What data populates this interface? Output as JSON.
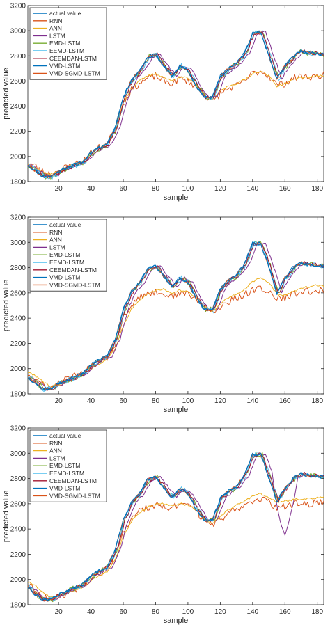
{
  "chart_data": [
    {
      "type": "line",
      "xlabel": "sample",
      "ylabel": "predicted value",
      "xlim": [
        1,
        184
      ],
      "ylim": [
        1800,
        3200
      ],
      "x_ticks": [
        20,
        40,
        60,
        80,
        100,
        120,
        140,
        160,
        180
      ],
      "y_ticks": [
        1800,
        2000,
        2200,
        2400,
        2600,
        2800,
        3000,
        3200
      ],
      "grid": false,
      "legend_position": "top-left",
      "legend": [
        "actual value",
        "RNN",
        "ANN",
        "LSTM",
        "EMD-LSTM",
        "EEMD-LSTM",
        "CEEMDAN-LSTM",
        "VMD-LSTM",
        "VMD-SGMD-LSTM"
      ],
      "colors": [
        "#0072BD",
        "#D95319",
        "#EDB120",
        "#7E2F8E",
        "#77AC30",
        "#4DBEEE",
        "#A2142F",
        "#0072BD",
        "#D95319"
      ],
      "actual": {
        "x": [
          1,
          5,
          10,
          15,
          20,
          25,
          30,
          35,
          40,
          45,
          50,
          55,
          60,
          65,
          70,
          75,
          80,
          85,
          90,
          95,
          100,
          105,
          110,
          115,
          120,
          125,
          130,
          135,
          140,
          145,
          150,
          155,
          160,
          165,
          170,
          175,
          180,
          184
        ],
        "y": [
          1930,
          1890,
          1845,
          1840,
          1880,
          1910,
          1935,
          1960,
          2030,
          2070,
          2100,
          2230,
          2470,
          2610,
          2680,
          2790,
          2810,
          2720,
          2640,
          2720,
          2680,
          2560,
          2470,
          2470,
          2640,
          2700,
          2740,
          2820,
          2980,
          2990,
          2800,
          2620,
          2720,
          2790,
          2840,
          2820,
          2820,
          2810
        ]
      },
      "rnn": {
        "x": [
          1,
          5,
          10,
          15,
          20,
          25,
          30,
          35,
          40,
          45,
          50,
          55,
          60,
          65,
          70,
          75,
          80,
          85,
          90,
          95,
          100,
          105,
          110,
          115,
          120,
          125,
          130,
          135,
          140,
          145,
          150,
          155,
          160,
          165,
          170,
          175,
          180,
          184
        ],
        "y": [
          1950,
          1930,
          1880,
          1860,
          1880,
          1920,
          1940,
          1960,
          2030,
          2070,
          2100,
          2220,
          2420,
          2530,
          2580,
          2620,
          2640,
          2600,
          2580,
          2620,
          2600,
          2560,
          2500,
          2430,
          2500,
          2540,
          2560,
          2600,
          2660,
          2680,
          2640,
          2570,
          2580,
          2620,
          2640,
          2630,
          2640,
          2650
        ]
      },
      "ann": {
        "x": [
          1,
          5,
          10,
          15,
          20,
          25,
          30,
          35,
          40,
          45,
          50,
          55,
          60,
          65,
          70,
          75,
          80,
          85,
          90,
          95,
          100,
          105,
          110,
          115,
          120,
          125,
          130,
          135,
          140,
          145,
          150,
          155,
          160,
          165,
          170,
          175,
          180,
          184
        ],
        "y": [
          1940,
          1920,
          1875,
          1860,
          1880,
          1915,
          1940,
          1960,
          2030,
          2070,
          2100,
          2220,
          2430,
          2540,
          2600,
          2640,
          2660,
          2630,
          2600,
          2640,
          2620,
          2570,
          2500,
          2450,
          2520,
          2560,
          2580,
          2610,
          2660,
          2680,
          2640,
          2560,
          2580,
          2610,
          2630,
          2630,
          2640,
          2640
        ]
      }
    },
    {
      "type": "line",
      "xlabel": "sample",
      "ylabel": "predicted value",
      "xlim": [
        1,
        184
      ],
      "ylim": [
        1800,
        3200
      ],
      "x_ticks": [
        20,
        40,
        60,
        80,
        100,
        120,
        140,
        160,
        180
      ],
      "y_ticks": [
        1800,
        2000,
        2200,
        2400,
        2600,
        2800,
        3000,
        3200
      ],
      "grid": false,
      "legend_position": "top-left",
      "legend": [
        "actual value",
        "RNN",
        "ANN",
        "LSTM",
        "EMD-LSTM",
        "EEMD-LSTM",
        "CEEMDAN-LSTM",
        "VMD-LSTM",
        "VMD-SGMD-LSTM"
      ],
      "colors": [
        "#0072BD",
        "#D95319",
        "#EDB120",
        "#7E2F8E",
        "#77AC30",
        "#4DBEEE",
        "#A2142F",
        "#0072BD",
        "#D95319"
      ],
      "actual": {
        "x": [
          1,
          5,
          10,
          15,
          20,
          25,
          30,
          35,
          40,
          45,
          50,
          55,
          60,
          65,
          70,
          75,
          80,
          85,
          90,
          95,
          100,
          105,
          110,
          115,
          120,
          125,
          130,
          135,
          140,
          145,
          150,
          155,
          160,
          165,
          170,
          175,
          180,
          184
        ],
        "y": [
          1930,
          1890,
          1840,
          1840,
          1880,
          1910,
          1935,
          1960,
          2030,
          2070,
          2100,
          2230,
          2470,
          2610,
          2680,
          2790,
          2810,
          2730,
          2650,
          2720,
          2680,
          2560,
          2470,
          2460,
          2630,
          2700,
          2740,
          2830,
          2990,
          2990,
          2810,
          2600,
          2720,
          2800,
          2840,
          2820,
          2820,
          2810
        ]
      },
      "rnn": {
        "x": [
          1,
          5,
          10,
          15,
          20,
          25,
          30,
          35,
          40,
          45,
          50,
          55,
          60,
          65,
          70,
          75,
          80,
          85,
          90,
          95,
          100,
          105,
          110,
          115,
          120,
          125,
          130,
          135,
          140,
          145,
          150,
          155,
          160,
          165,
          170,
          175,
          180,
          184
        ],
        "y": [
          1960,
          1920,
          1870,
          1850,
          1880,
          1915,
          1940,
          1960,
          2020,
          2060,
          2090,
          2200,
          2400,
          2510,
          2560,
          2590,
          2610,
          2590,
          2570,
          2600,
          2590,
          2550,
          2490,
          2440,
          2490,
          2530,
          2560,
          2590,
          2620,
          2640,
          2610,
          2550,
          2560,
          2590,
          2610,
          2610,
          2620,
          2610
        ]
      },
      "ann": {
        "x": [
          1,
          5,
          10,
          15,
          20,
          25,
          30,
          35,
          40,
          45,
          50,
          55,
          60,
          65,
          70,
          75,
          80,
          85,
          90,
          95,
          100,
          105,
          110,
          115,
          120,
          125,
          130,
          135,
          140,
          145,
          150,
          155,
          160,
          165,
          170,
          175,
          180,
          184
        ],
        "y": [
          1970,
          1950,
          1900,
          1860,
          1870,
          1900,
          1930,
          1950,
          2000,
          2040,
          2070,
          2160,
          2340,
          2470,
          2540,
          2590,
          2620,
          2630,
          2600,
          2620,
          2610,
          2560,
          2500,
          2450,
          2510,
          2560,
          2590,
          2630,
          2690,
          2720,
          2680,
          2590,
          2580,
          2610,
          2640,
          2650,
          2660,
          2650
        ]
      }
    },
    {
      "type": "line",
      "xlabel": "sample",
      "ylabel": "predicted value",
      "xlim": [
        1,
        184
      ],
      "ylim": [
        1800,
        3200
      ],
      "x_ticks": [
        20,
        40,
        60,
        80,
        100,
        120,
        140,
        160,
        180
      ],
      "y_ticks": [
        1800,
        2000,
        2200,
        2400,
        2600,
        2800,
        3000,
        3200
      ],
      "grid": false,
      "legend_position": "top-left",
      "legend": [
        "actual value",
        "RNN",
        "ANN",
        "LSTM",
        "EMD-LSTM",
        "EEMD-LSTM",
        "CEEMDAN-LSTM",
        "VMD-LSTM",
        "VMD-SGMD-LSTM"
      ],
      "colors": [
        "#0072BD",
        "#D95319",
        "#EDB120",
        "#7E2F8E",
        "#77AC30",
        "#4DBEEE",
        "#A2142F",
        "#0072BD",
        "#D95319"
      ],
      "actual": {
        "x": [
          1,
          5,
          10,
          15,
          20,
          25,
          30,
          35,
          40,
          45,
          50,
          55,
          60,
          65,
          70,
          75,
          80,
          85,
          90,
          95,
          100,
          105,
          110,
          115,
          120,
          125,
          130,
          135,
          140,
          145,
          150,
          155,
          160,
          165,
          170,
          175,
          180,
          184
        ],
        "y": [
          1940,
          1890,
          1840,
          1840,
          1880,
          1910,
          1935,
          1960,
          2030,
          2070,
          2100,
          2230,
          2470,
          2610,
          2680,
          2790,
          2810,
          2730,
          2650,
          2720,
          2680,
          2560,
          2470,
          2470,
          2640,
          2700,
          2740,
          2830,
          2990,
          2990,
          2810,
          2620,
          2720,
          2800,
          2840,
          2820,
          2820,
          2810
        ]
      },
      "rnn": {
        "x": [
          1,
          5,
          10,
          15,
          20,
          25,
          30,
          35,
          40,
          45,
          50,
          55,
          60,
          65,
          70,
          75,
          80,
          85,
          90,
          95,
          100,
          105,
          110,
          115,
          120,
          125,
          130,
          135,
          140,
          145,
          150,
          155,
          160,
          165,
          170,
          175,
          180,
          184
        ],
        "y": [
          1960,
          1930,
          1870,
          1840,
          1860,
          1890,
          1920,
          1950,
          2010,
          2050,
          2080,
          2180,
          2370,
          2480,
          2540,
          2570,
          2590,
          2580,
          2570,
          2590,
          2580,
          2540,
          2470,
          2430,
          2480,
          2520,
          2560,
          2590,
          2620,
          2640,
          2610,
          2570,
          2580,
          2600,
          2610,
          2600,
          2610,
          2610
        ]
      },
      "ann": {
        "x": [
          1,
          5,
          10,
          15,
          20,
          25,
          30,
          35,
          40,
          45,
          50,
          55,
          60,
          65,
          70,
          75,
          80,
          85,
          90,
          95,
          100,
          105,
          110,
          115,
          120,
          125,
          130,
          135,
          140,
          145,
          150,
          155,
          160,
          165,
          170,
          175,
          180,
          184
        ],
        "y": [
          1980,
          1960,
          1900,
          1860,
          1860,
          1890,
          1920,
          1940,
          1990,
          2030,
          2060,
          2150,
          2340,
          2460,
          2530,
          2570,
          2600,
          2600,
          2580,
          2600,
          2590,
          2550,
          2480,
          2440,
          2500,
          2550,
          2590,
          2620,
          2660,
          2680,
          2650,
          2610,
          2620,
          2630,
          2640,
          2640,
          2650,
          2650
        ]
      },
      "lstm_dip": {
        "x": 160,
        "y": 2350
      }
    }
  ]
}
